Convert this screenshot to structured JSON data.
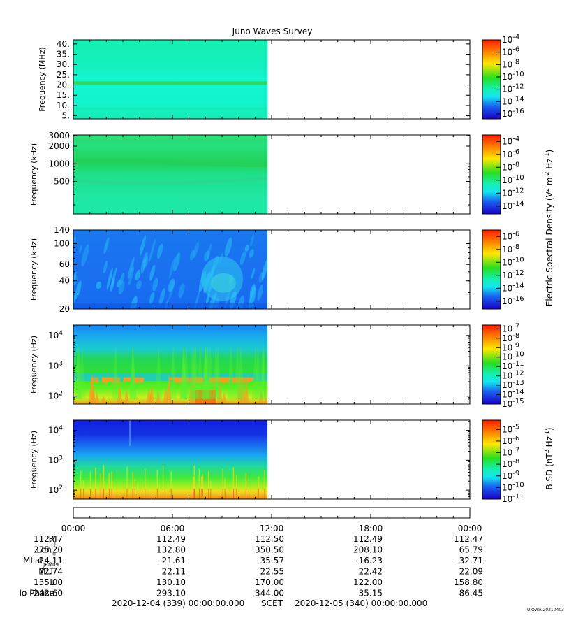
{
  "title": "Juno Waves Survey",
  "stamp": "UIOWA 20210403",
  "panels": [
    {
      "name": "panel-hfr-high",
      "ylabel": "Frequency (MHz)",
      "scale": "linear",
      "ylim": [
        3.5,
        42
      ],
      "yticks": [
        "40.",
        "35.",
        "30.",
        "25.",
        "20.",
        "15.",
        "10.",
        "5."
      ],
      "ytick_values": [
        40,
        35,
        30,
        25,
        20,
        15,
        10,
        5
      ],
      "cbar_labels": [
        "10",
        "10",
        "10",
        "10",
        "10",
        "10",
        "10"
      ],
      "cbar_exps": [
        "-4",
        "-6",
        "-8",
        "-10",
        "-12",
        "-14",
        "-16"
      ],
      "cbar_range": [
        -4,
        -16.8
      ],
      "colors": {
        "base": "#14f5c8",
        "band": "#2bd968",
        "lowband": "#18e6a8"
      }
    },
    {
      "name": "panel-hfr-low",
      "ylabel": "Frequency (kHz)",
      "scale": "log",
      "ylim": [
        140,
        3100
      ],
      "yticks": [
        "3000",
        "2000",
        "1000",
        "500"
      ],
      "ytick_values": [
        3000,
        2000,
        1000,
        500
      ],
      "cbar_labels": [
        "10",
        "10",
        "10",
        "10",
        "10",
        "10"
      ],
      "cbar_exps": [
        "-4",
        "-6",
        "-8",
        "-10",
        "-12",
        "-14"
      ],
      "cbar_range": [
        -3,
        -15.2
      ],
      "colors": {
        "base": "#1ee8a0",
        "band": "#22d15a",
        "top": "#30dd80"
      }
    },
    {
      "name": "panel-lfr-high",
      "ylabel": "Frequency (kHz)",
      "scale": "log",
      "ylim": [
        20,
        140
      ],
      "yticks": [
        "140",
        "100",
        "60",
        "40",
        "20"
      ],
      "ytick_values": [
        140,
        100,
        60,
        40,
        20
      ],
      "cbar_labels": [
        "10",
        "10",
        "10",
        "10",
        "10",
        "10"
      ],
      "cbar_exps": [
        "-6",
        "-8",
        "-10",
        "-12",
        "-14",
        "-16"
      ],
      "cbar_range": [
        -5,
        -17.2
      ],
      "colors": {
        "base": "#1a6ef0",
        "spot": "#27b8f5",
        "dark": "#0f56e0"
      }
    },
    {
      "name": "panel-lfr-low",
      "ylabel": "Frequency (Hz)",
      "scale": "log",
      "ylim": [
        55,
        22000
      ],
      "yticks": [
        "10",
        "10",
        "10"
      ],
      "ytick_exps": [
        "4",
        "3",
        "2"
      ],
      "ytick_values": [
        10000,
        1000,
        100
      ],
      "cbar_labels": [
        "10",
        "10",
        "10",
        "10",
        "10",
        "10",
        "10",
        "10",
        "10"
      ],
      "cbar_exps": [
        "-7",
        "-8",
        "-9",
        "-10",
        "-11",
        "-12",
        "-13",
        "-14",
        "-15"
      ],
      "cbar_range": [
        -6.6,
        -15
      ],
      "colors": {
        "top": "#1a90f0",
        "mid": "#22cc44",
        "low": "#4cf020",
        "hot": "#f2a020",
        "hotter": "#ff6a10"
      }
    },
    {
      "name": "panel-magnetic",
      "ylabel": "Frequency (Hz)",
      "scale": "log",
      "ylim": [
        50,
        22000
      ],
      "yticks": [
        "10",
        "10",
        "10"
      ],
      "ytick_exps": [
        "4",
        "3",
        "2"
      ],
      "ytick_values": [
        10000,
        1000,
        100
      ],
      "cbar_labels": [
        "10",
        "10",
        "10",
        "10",
        "10",
        "10",
        "10"
      ],
      "cbar_exps": [
        "-5",
        "-6",
        "-7",
        "-8",
        "-9",
        "-10",
        "-11"
      ],
      "cbar_range": [
        -4.2,
        -11
      ],
      "colors": {
        "top": "#1028e0",
        "upper": "#1a6cf0",
        "mid": "#22d6b0",
        "low": "#7af020",
        "bottom": "#f0c020",
        "floor": "#f08020"
      }
    }
  ],
  "colorbar_titles": {
    "electric": "Electric Spectral Density (V",
    "electric_exp1": "2",
    "electric_mid": " m",
    "electric_exp2": "-2",
    "electric_mid2": " Hz",
    "electric_exp3": "-1",
    "electric_end": ")",
    "magnetic": "B SD (nT",
    "magnetic_exp1": "2",
    "magnetic_mid": " Hz",
    "magnetic_exp2": "-1",
    "magnetic_end": ")"
  },
  "chart_data": {
    "type": "heatmap",
    "title": "Juno Waves Survey",
    "x": [
      "00:00",
      "06:00",
      "12:00",
      "18:00",
      "00:00"
    ],
    "data_coverage_hours": [
      0,
      11.75
    ],
    "x_range_hours": [
      0,
      24
    ]
  },
  "ephemeris": {
    "times": [
      "00:00",
      "06:00",
      "12:00",
      "18:00",
      "00:00"
    ],
    "rows": [
      {
        "label": "R",
        "sub": "J",
        "values": [
          "112.47",
          "112.49",
          "112.50",
          "112.49",
          "112.47"
        ]
      },
      {
        "label": "Lon",
        "sub": "III",
        "values": [
          "275.20",
          "132.80",
          "350.50",
          "208.10",
          "65.79"
        ]
      },
      {
        "label": "MLat",
        "sub": "JRM09",
        "values": [
          "-24.11",
          "-21.61",
          "-35.57",
          "-16.23",
          "-32.71"
        ]
      },
      {
        "label": "MLT",
        "sub": "",
        "values": [
          "22.74",
          "22.11",
          "22.55",
          "22.42",
          "22.09"
        ]
      },
      {
        "label": "L",
        "sub": "",
        "values": [
          "135.00",
          "130.10",
          "170.00",
          "122.00",
          "158.80"
        ]
      },
      {
        "label": "Io Phase",
        "sub": "",
        "values": [
          "242.60",
          "293.10",
          "344.00",
          "35.15",
          "86.45"
        ]
      }
    ]
  },
  "footer": {
    "start": "2020-12-04 (339) 00:00:00.000",
    "scet": "SCET",
    "end": "2020-12-05 (340) 00:00:00.000"
  }
}
